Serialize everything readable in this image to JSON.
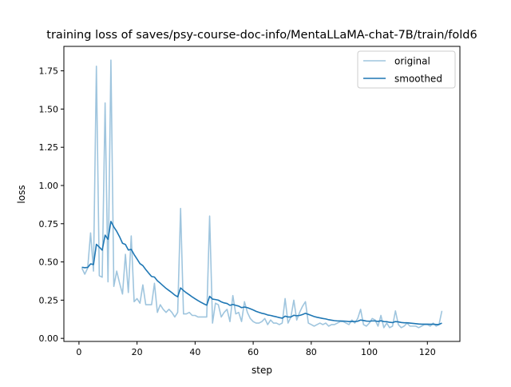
{
  "chart_data": {
    "type": "line",
    "title": "training loss of saves/psy-course-doc-info/MentaLLaMA-chat-7B/train/fold6",
    "xlabel": "step",
    "ylabel": "loss",
    "xlim": [
      -5.2,
      131.2
    ],
    "ylim": [
      -0.02,
      1.91
    ],
    "xticks": [
      0,
      20,
      40,
      60,
      80,
      100,
      120
    ],
    "yticks": [
      0.0,
      0.25,
      0.5,
      0.75,
      1.0,
      1.25,
      1.5,
      1.75
    ],
    "ytick_labels": [
      "0.00",
      "0.25",
      "0.50",
      "0.75",
      "1.00",
      "1.25",
      "1.50",
      "1.75"
    ],
    "legend": {
      "position": "top-right"
    },
    "grid": false,
    "series": [
      {
        "name": "original",
        "color": "#9fc5de",
        "x": [
          1,
          2,
          3,
          4,
          5,
          6,
          7,
          8,
          9,
          10,
          11,
          12,
          13,
          14,
          15,
          16,
          17,
          18,
          19,
          20,
          21,
          22,
          23,
          24,
          25,
          26,
          27,
          28,
          29,
          30,
          31,
          32,
          33,
          34,
          35,
          36,
          37,
          38,
          39,
          40,
          41,
          42,
          43,
          44,
          45,
          46,
          47,
          48,
          49,
          50,
          51,
          52,
          53,
          54,
          55,
          56,
          57,
          58,
          59,
          60,
          61,
          62,
          63,
          64,
          65,
          66,
          67,
          68,
          69,
          70,
          71,
          72,
          73,
          74,
          75,
          76,
          77,
          78,
          79,
          80,
          81,
          82,
          83,
          84,
          85,
          86,
          87,
          88,
          89,
          90,
          91,
          92,
          93,
          94,
          95,
          96,
          97,
          98,
          99,
          100,
          101,
          102,
          103,
          104,
          105,
          106,
          107,
          108,
          109,
          110,
          111,
          112,
          113,
          114,
          115,
          116,
          117,
          118,
          119,
          120,
          121,
          122,
          123,
          124,
          125
        ],
        "values": [
          0.46,
          0.42,
          0.46,
          0.69,
          0.44,
          1.78,
          0.41,
          0.4,
          1.54,
          0.37,
          1.82,
          0.34,
          0.44,
          0.36,
          0.29,
          0.55,
          0.3,
          0.67,
          0.24,
          0.26,
          0.23,
          0.35,
          0.22,
          0.22,
          0.22,
          0.36,
          0.17,
          0.22,
          0.19,
          0.17,
          0.19,
          0.17,
          0.14,
          0.17,
          0.85,
          0.16,
          0.16,
          0.17,
          0.15,
          0.15,
          0.14,
          0.14,
          0.14,
          0.14,
          0.8,
          0.1,
          0.23,
          0.22,
          0.14,
          0.17,
          0.19,
          0.11,
          0.28,
          0.16,
          0.17,
          0.11,
          0.24,
          0.17,
          0.13,
          0.11,
          0.1,
          0.1,
          0.11,
          0.13,
          0.09,
          0.12,
          0.1,
          0.1,
          0.09,
          0.1,
          0.26,
          0.1,
          0.14,
          0.25,
          0.12,
          0.17,
          0.21,
          0.24,
          0.1,
          0.09,
          0.08,
          0.09,
          0.1,
          0.09,
          0.1,
          0.08,
          0.09,
          0.09,
          0.1,
          0.11,
          0.11,
          0.1,
          0.09,
          0.12,
          0.1,
          0.13,
          0.19,
          0.09,
          0.08,
          0.1,
          0.13,
          0.12,
          0.08,
          0.15,
          0.07,
          0.1,
          0.07,
          0.08,
          0.18,
          0.09,
          0.07,
          0.08,
          0.1,
          0.08,
          0.08,
          0.08,
          0.07,
          0.08,
          0.09,
          0.09,
          0.08,
          0.1,
          0.08,
          0.09,
          0.18
        ]
      },
      {
        "name": "smoothed",
        "color": "#1f77b4",
        "x": [
          1,
          2,
          3,
          4,
          5,
          6,
          7,
          8,
          9,
          10,
          11,
          12,
          13,
          14,
          15,
          16,
          17,
          18,
          19,
          20,
          21,
          22,
          23,
          24,
          25,
          26,
          27,
          28,
          29,
          30,
          31,
          32,
          33,
          34,
          35,
          36,
          37,
          38,
          39,
          40,
          41,
          42,
          43,
          44,
          45,
          46,
          47,
          48,
          49,
          50,
          51,
          52,
          53,
          54,
          55,
          56,
          57,
          58,
          59,
          60,
          61,
          62,
          63,
          64,
          65,
          66,
          67,
          68,
          69,
          70,
          71,
          72,
          73,
          74,
          75,
          76,
          77,
          78,
          79,
          80,
          81,
          82,
          83,
          84,
          85,
          86,
          87,
          88,
          89,
          90,
          91,
          92,
          93,
          94,
          95,
          96,
          97,
          98,
          99,
          100,
          101,
          102,
          103,
          104,
          105,
          106,
          107,
          108,
          109,
          110,
          111,
          112,
          113,
          114,
          115,
          116,
          117,
          118,
          119,
          120,
          121,
          122,
          123,
          124,
          125
        ],
        "values": [
          0.465,
          0.462,
          0.464,
          0.487,
          0.483,
          0.615,
          0.597,
          0.577,
          0.675,
          0.648,
          0.765,
          0.729,
          0.7,
          0.664,
          0.622,
          0.614,
          0.578,
          0.582,
          0.548,
          0.519,
          0.489,
          0.476,
          0.45,
          0.427,
          0.405,
          0.401,
          0.377,
          0.361,
          0.344,
          0.327,
          0.313,
          0.299,
          0.283,
          0.272,
          0.33,
          0.313,
          0.298,
          0.285,
          0.271,
          0.259,
          0.247,
          0.236,
          0.226,
          0.217,
          0.275,
          0.257,
          0.254,
          0.25,
          0.239,
          0.232,
          0.228,
          0.216,
          0.222,
          0.216,
          0.211,
          0.201,
          0.205,
          0.201,
          0.194,
          0.186,
          0.177,
          0.17,
          0.164,
          0.16,
          0.153,
          0.15,
          0.145,
          0.141,
          0.136,
          0.132,
          0.145,
          0.14,
          0.14,
          0.151,
          0.148,
          0.15,
          0.156,
          0.164,
          0.157,
          0.15,
          0.143,
          0.138,
          0.134,
          0.13,
          0.127,
          0.122,
          0.119,
          0.116,
          0.114,
          0.114,
          0.113,
          0.112,
          0.11,
          0.111,
          0.11,
          0.112,
          0.12,
          0.117,
          0.113,
          0.112,
          0.114,
          0.114,
          0.111,
          0.115,
          0.11,
          0.109,
          0.105,
          0.103,
          0.11,
          0.108,
          0.104,
          0.102,
          0.102,
          0.1,
          0.098,
          0.096,
          0.094,
          0.093,
          0.093,
          0.093,
          0.092,
          0.093,
          0.091,
          0.091,
          0.1
        ]
      }
    ]
  }
}
